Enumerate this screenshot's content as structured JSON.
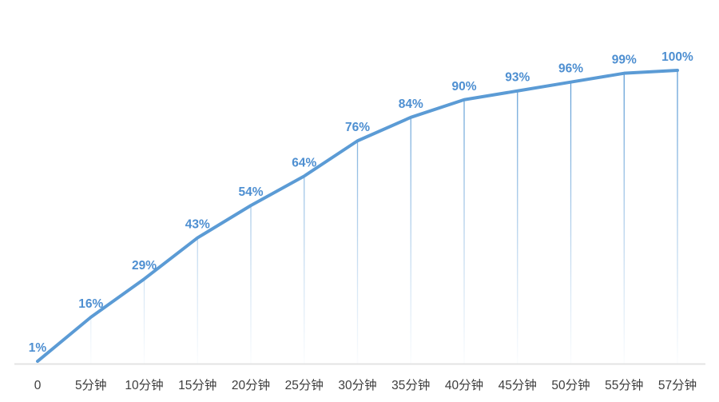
{
  "chart_data": {
    "type": "line",
    "title": "",
    "categories": [
      "0",
      "5分钟",
      "10分钟",
      "15分钟",
      "20分钟",
      "25分钟",
      "30分钟",
      "35分钟",
      "40分钟",
      "45分钟",
      "50分钟",
      "55分钟",
      "57分钟"
    ],
    "values": [
      1,
      16,
      29,
      43,
      54,
      64,
      76,
      84,
      90,
      93,
      96,
      99,
      100
    ],
    "data_labels": [
      "1%",
      "16%",
      "29%",
      "43%",
      "54%",
      "64%",
      "76%",
      "84%",
      "90%",
      "93%",
      "96%",
      "99%",
      "100%"
    ],
    "xlabel": "",
    "ylabel": "",
    "ylim": [
      0,
      100
    ],
    "grid": false,
    "legend": "none",
    "drop_lines": true,
    "colors": {
      "line": "#5B9BD5",
      "data_label": "#4E8FD1",
      "drop_line": "#5B9BD5",
      "axis_line": "#E3E3E3",
      "axis_label": "#3D3D3D",
      "background": "#FFFFFF"
    }
  }
}
